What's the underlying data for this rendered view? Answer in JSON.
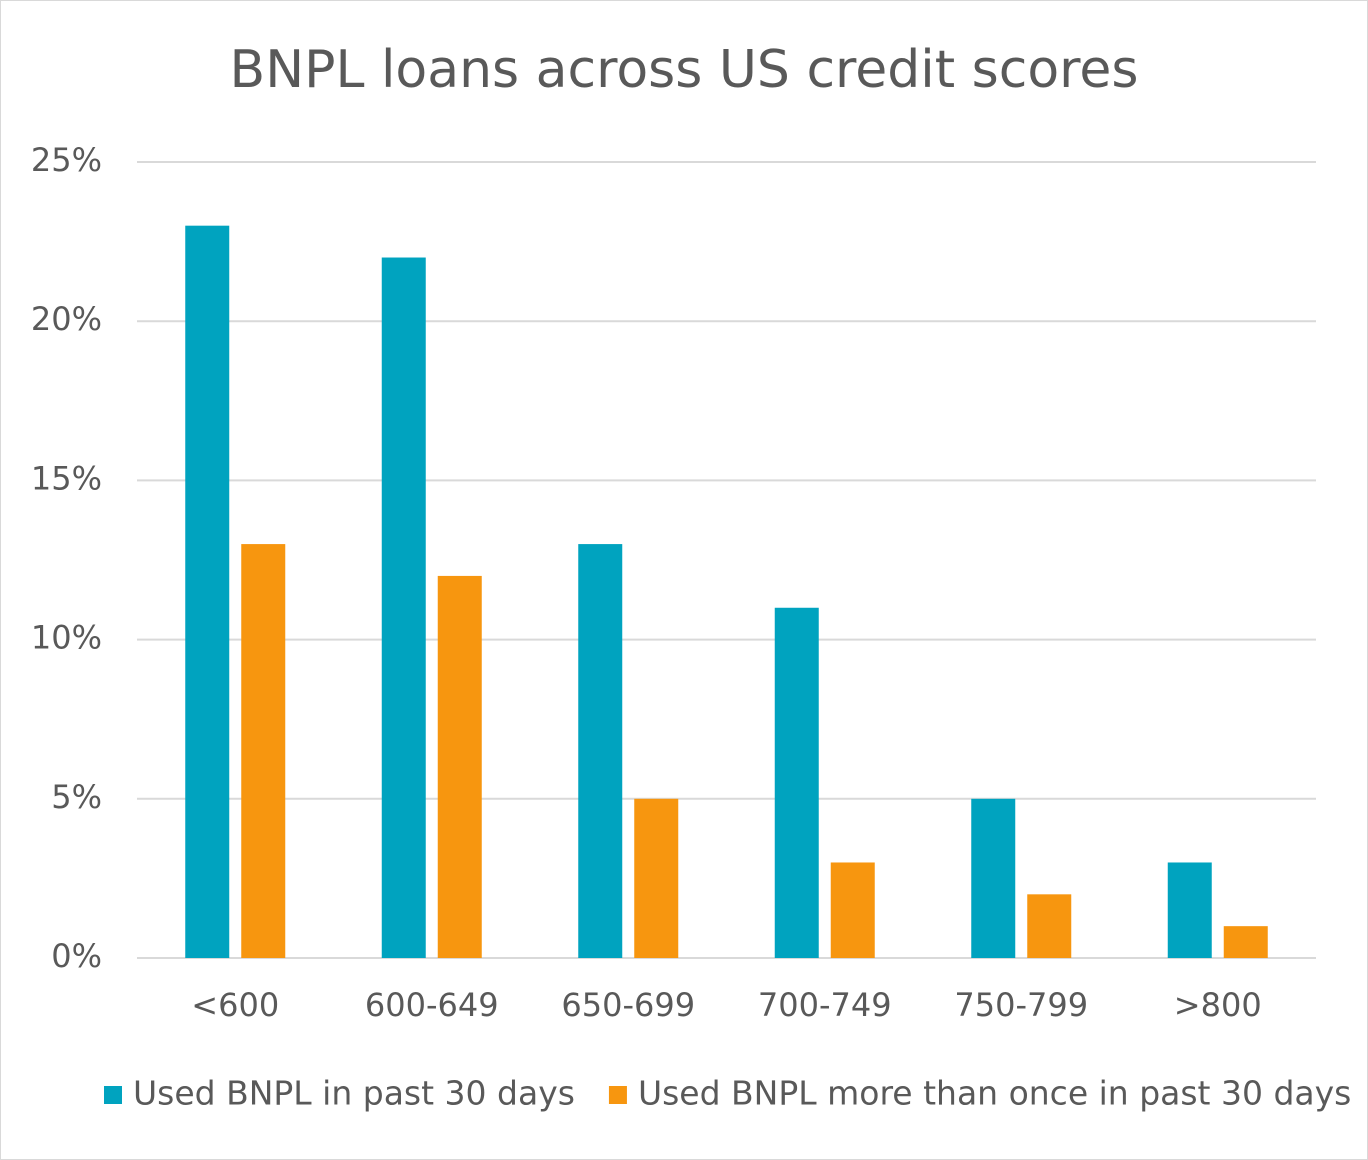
{
  "chart_data": {
    "type": "bar",
    "title": "BNPL loans across US credit scores",
    "categories": [
      "<600",
      "600-649",
      "650-699",
      "700-749",
      "750-799",
      ">800"
    ],
    "series": [
      {
        "name": "Used BNPL in past 30 days",
        "color": "#00a3bf",
        "values": [
          23,
          22,
          13,
          11,
          5,
          3
        ]
      },
      {
        "name": "Used BNPL more than once in past 30 days",
        "color": "#f7960f",
        "values": [
          13,
          12,
          5,
          3,
          2,
          1
        ]
      }
    ],
    "ylim": [
      0,
      25
    ],
    "yticks": [
      {
        "value": 0,
        "label": "0%"
      },
      {
        "value": 5,
        "label": "5%"
      },
      {
        "value": 10,
        "label": "10%"
      },
      {
        "value": 15,
        "label": "15%"
      },
      {
        "value": 20,
        "label": "20%"
      },
      {
        "value": 25,
        "label": "25%"
      }
    ],
    "grid": true,
    "legend": "bottom"
  }
}
